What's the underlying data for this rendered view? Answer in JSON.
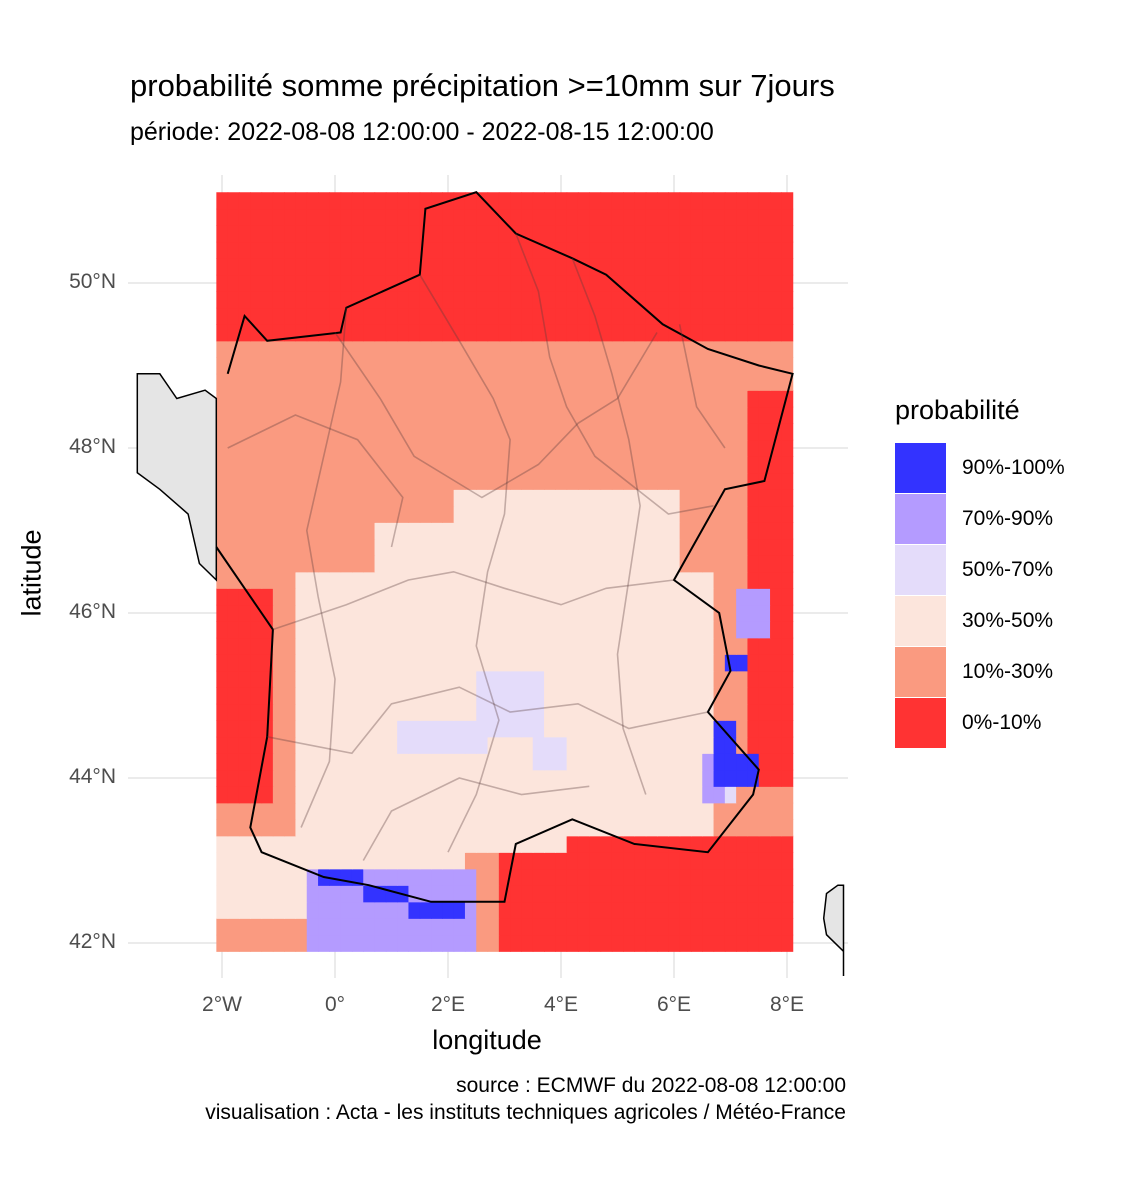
{
  "title": "probabilité somme précipitation >=10mm sur 7jours",
  "subtitle": "période: 2022-08-08 12:00:00 - 2022-08-15 12:00:00",
  "axes": {
    "xlabel": "longitude",
    "ylabel": "latitude",
    "x_ticks": [
      "2°W",
      "0°",
      "2°E",
      "4°E",
      "6°E",
      "8°E"
    ],
    "x_tick_values": [
      -2,
      0,
      2,
      4,
      6,
      8
    ],
    "y_ticks": [
      "50°N",
      "48°N",
      "46°N",
      "44°N",
      "42°N"
    ],
    "y_tick_values": [
      50,
      48,
      46,
      44,
      42
    ],
    "xlim": [
      -3.5,
      9
    ],
    "ylim": [
      41.6,
      51.3
    ]
  },
  "legend": {
    "title": "probabilité",
    "items": [
      {
        "label": "90%-100%",
        "color": "#3333ff"
      },
      {
        "label": "70%-90%",
        "color": "#b49bff"
      },
      {
        "label": "50%-70%",
        "color": "#e4dcfa"
      },
      {
        "label": "30%-50%",
        "color": "#fce5dc"
      },
      {
        "label": "10%-30%",
        "color": "#fa9a80"
      },
      {
        "label": "0%-10%",
        "color": "#ff3333"
      }
    ]
  },
  "caption": {
    "source": "source : ECMWF du 2022-08-08 12:00:00",
    "visualisation": "visualisation : Acta - les instituts techniques agricoles / Météo-France"
  },
  "chart_data": {
    "type": "heatmap",
    "grid_extent": {
      "lon": [
        -2.1,
        8.1
      ],
      "lat": [
        41.9,
        51.1
      ]
    },
    "grid_cell_deg": 0.2,
    "category_labels": [
      "90%-100%",
      "70%-90%",
      "50%-70%",
      "30%-50%",
      "10%-30%",
      "0%-10%"
    ],
    "default_category": "10%-30%",
    "regions": [
      {
        "category": "0%-10%",
        "lon": [
          -2.1,
          8.1
        ],
        "lat": [
          49.3,
          51.1
        ]
      },
      {
        "category": "0%-10%",
        "lon": [
          -2.1,
          -1.1
        ],
        "lat": [
          43.8,
          46.4
        ]
      },
      {
        "category": "0%-10%",
        "lon": [
          3.0,
          8.1
        ],
        "lat": [
          41.9,
          43.3
        ]
      },
      {
        "category": "0%-10%",
        "lon": [
          7.3,
          8.1
        ],
        "lat": [
          44.0,
          48.8
        ]
      },
      {
        "category": "30%-50%",
        "lon": [
          -0.7,
          6.7
        ],
        "lat": [
          43.3,
          46.6
        ]
      },
      {
        "category": "30%-50%",
        "lon": [
          0.8,
          4.2
        ],
        "lat": [
          43.1,
          47.1
        ]
      },
      {
        "category": "30%-50%",
        "lon": [
          2.1,
          6.1
        ],
        "lat": [
          46.6,
          47.5
        ]
      },
      {
        "category": "30%-50%",
        "lon": [
          -2.1,
          2.3
        ],
        "lat": [
          42.2,
          43.2
        ]
      },
      {
        "category": "50%-70%",
        "lon": [
          2.6,
          3.8
        ],
        "lat": [
          44.5,
          45.3
        ]
      },
      {
        "category": "50%-70%",
        "lon": [
          1.1,
          2.7
        ],
        "lat": [
          44.3,
          44.8
        ]
      },
      {
        "category": "50%-70%",
        "lon": [
          3.6,
          4.1
        ],
        "lat": [
          44.1,
          44.6
        ]
      },
      {
        "category": "50%-70%",
        "lon": [
          -0.6,
          2.0
        ],
        "lat": [
          42.3,
          42.7
        ]
      },
      {
        "category": "50%-70%",
        "lon": [
          6.6,
          7.1
        ],
        "lat": [
          43.8,
          44.3
        ]
      },
      {
        "category": "70%-90%",
        "lon": [
          -0.4,
          2.5
        ],
        "lat": [
          42.0,
          43.0
        ]
      },
      {
        "category": "70%-90%",
        "lon": [
          7.2,
          7.8
        ],
        "lat": [
          45.8,
          46.2
        ]
      },
      {
        "category": "70%-90%",
        "lon": [
          6.6,
          7.0
        ],
        "lat": [
          43.8,
          44.3
        ]
      },
      {
        "category": "90%-100%",
        "lon": [
          -0.3,
          0.4
        ],
        "lat": [
          42.7,
          42.9
        ]
      },
      {
        "category": "90%-100%",
        "lon": [
          0.4,
          1.4
        ],
        "lat": [
          42.5,
          42.8
        ]
      },
      {
        "category": "90%-100%",
        "lon": [
          1.4,
          2.2
        ],
        "lat": [
          42.3,
          42.6
        ]
      },
      {
        "category": "90%-100%",
        "lon": [
          6.8,
          7.2
        ],
        "lat": [
          43.9,
          44.7
        ]
      },
      {
        "category": "90%-100%",
        "lon": [
          7.0,
          7.6
        ],
        "lat": [
          43.9,
          44.2
        ]
      },
      {
        "category": "90%-100%",
        "lon": [
          7.0,
          7.3
        ],
        "lat": [
          45.2,
          45.5
        ]
      }
    ]
  }
}
